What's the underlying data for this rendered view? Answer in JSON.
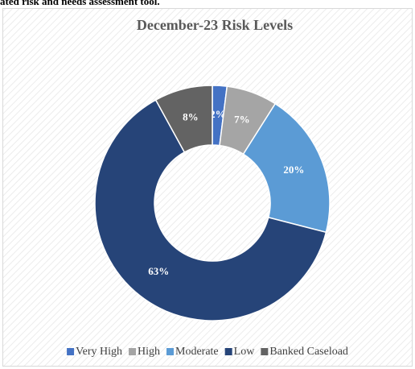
{
  "page_text": "ated risk and  needs assessment tool.",
  "chart_data": {
    "type": "doughnut",
    "title": "December-23 Risk Levels",
    "categories": [
      "Very High",
      "High",
      "Moderate",
      "Low",
      "Banked Caseload"
    ],
    "values": [
      2,
      7,
      20,
      63,
      8
    ],
    "value_labels": [
      "2%",
      "7%",
      "20%",
      "63%",
      "8%"
    ],
    "colors": [
      "#4472c4",
      "#a5a5a5",
      "#5b9bd5",
      "#264478",
      "#636363"
    ],
    "legend": "bottom"
  }
}
